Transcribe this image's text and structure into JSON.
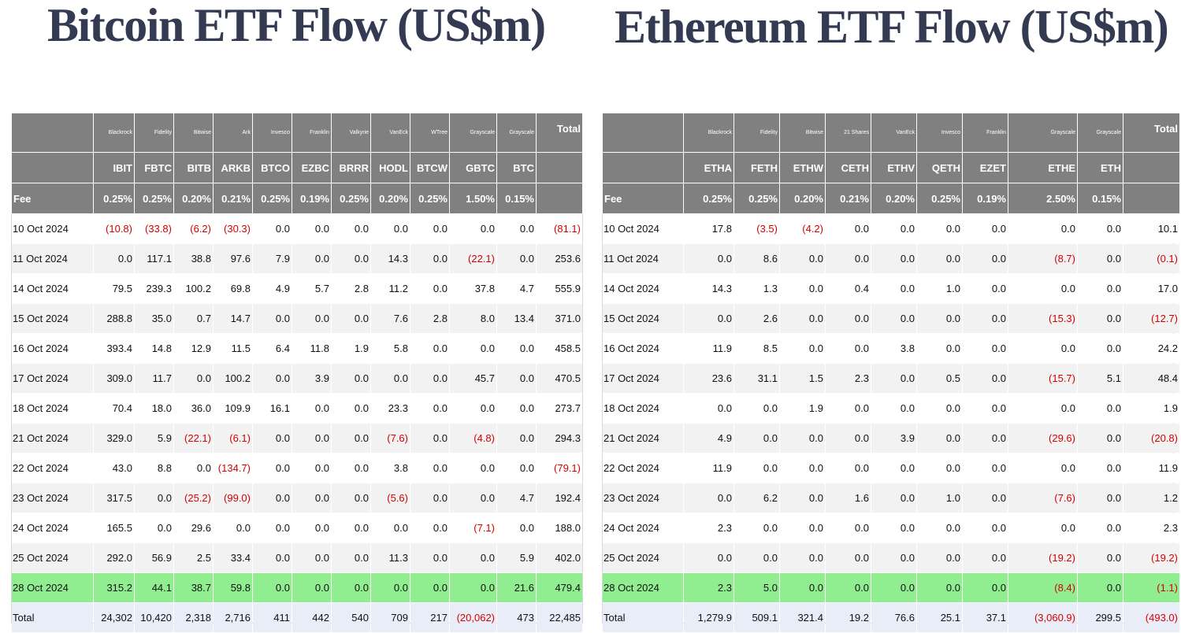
{
  "btc": {
    "title": "Bitcoin ETF Flow (US$m)",
    "issuers": [
      "Blackrock",
      "Fidelity",
      "Bitwise",
      "Ark",
      "Invesco",
      "Franklin",
      "Valkyrie",
      "VanEck",
      "WTree",
      "Grayscale",
      "Grayscale"
    ],
    "total_label": "Total",
    "tickers": [
      "IBIT",
      "FBTC",
      "BITB",
      "ARKB",
      "BTCO",
      "EZBC",
      "BRRR",
      "HODL",
      "BTCW",
      "GBTC",
      "BTC"
    ],
    "fee_label": "Fee",
    "fees": [
      "0.25%",
      "0.25%",
      "0.20%",
      "0.21%",
      "0.25%",
      "0.19%",
      "0.25%",
      "0.20%",
      "0.25%",
      "1.50%",
      "0.15%"
    ],
    "rows": [
      {
        "date": "10 Oct 2024",
        "values": [
          "(10.8)",
          "(33.8)",
          "(6.2)",
          "(30.3)",
          "0.0",
          "0.0",
          "0.0",
          "0.0",
          "0.0",
          "0.0",
          "0.0",
          "(81.1)"
        ]
      },
      {
        "date": "11 Oct 2024",
        "values": [
          "0.0",
          "117.1",
          "38.8",
          "97.6",
          "7.9",
          "0.0",
          "0.0",
          "14.3",
          "0.0",
          "(22.1)",
          "0.0",
          "253.6"
        ]
      },
      {
        "date": "14 Oct 2024",
        "values": [
          "79.5",
          "239.3",
          "100.2",
          "69.8",
          "4.9",
          "5.7",
          "2.8",
          "11.2",
          "0.0",
          "37.8",
          "4.7",
          "555.9"
        ]
      },
      {
        "date": "15 Oct 2024",
        "values": [
          "288.8",
          "35.0",
          "0.7",
          "14.7",
          "0.0",
          "0.0",
          "0.0",
          "7.6",
          "2.8",
          "8.0",
          "13.4",
          "371.0"
        ]
      },
      {
        "date": "16 Oct 2024",
        "values": [
          "393.4",
          "14.8",
          "12.9",
          "11.5",
          "6.4",
          "11.8",
          "1.9",
          "5.8",
          "0.0",
          "0.0",
          "0.0",
          "458.5"
        ]
      },
      {
        "date": "17 Oct 2024",
        "values": [
          "309.0",
          "11.7",
          "0.0",
          "100.2",
          "0.0",
          "3.9",
          "0.0",
          "0.0",
          "0.0",
          "45.7",
          "0.0",
          "470.5"
        ]
      },
      {
        "date": "18 Oct 2024",
        "values": [
          "70.4",
          "18.0",
          "36.0",
          "109.9",
          "16.1",
          "0.0",
          "0.0",
          "23.3",
          "0.0",
          "0.0",
          "0.0",
          "273.7"
        ]
      },
      {
        "date": "21 Oct 2024",
        "values": [
          "329.0",
          "5.9",
          "(22.1)",
          "(6.1)",
          "0.0",
          "0.0",
          "0.0",
          "(7.6)",
          "0.0",
          "(4.8)",
          "0.0",
          "294.3"
        ]
      },
      {
        "date": "22 Oct 2024",
        "values": [
          "43.0",
          "8.8",
          "0.0",
          "(134.7)",
          "0.0",
          "0.0",
          "0.0",
          "3.8",
          "0.0",
          "0.0",
          "0.0",
          "(79.1)"
        ]
      },
      {
        "date": "23 Oct 2024",
        "values": [
          "317.5",
          "0.0",
          "(25.2)",
          "(99.0)",
          "0.0",
          "0.0",
          "0.0",
          "(5.6)",
          "0.0",
          "0.0",
          "4.7",
          "192.4"
        ]
      },
      {
        "date": "24 Oct 2024",
        "values": [
          "165.5",
          "0.0",
          "29.6",
          "0.0",
          "0.0",
          "0.0",
          "0.0",
          "0.0",
          "0.0",
          "(7.1)",
          "0.0",
          "188.0"
        ]
      },
      {
        "date": "25 Oct 2024",
        "values": [
          "292.0",
          "56.9",
          "2.5",
          "33.4",
          "0.0",
          "0.0",
          "0.0",
          "11.3",
          "0.0",
          "0.0",
          "5.9",
          "402.0"
        ]
      },
      {
        "date": "28 Oct 2024",
        "values": [
          "315.2",
          "44.1",
          "38.7",
          "59.8",
          "0.0",
          "0.0",
          "0.0",
          "0.0",
          "0.0",
          "0.0",
          "21.6",
          "479.4"
        ],
        "highlight": true
      },
      {
        "date": "Total",
        "values": [
          "24,302",
          "10,420",
          "2,318",
          "2,716",
          "411",
          "442",
          "540",
          "709",
          "217",
          "(20,062)",
          "473",
          "22,485"
        ],
        "total": true
      }
    ]
  },
  "eth": {
    "title": "Ethereum ETF Flow (US$m)",
    "issuers": [
      "Blackrock",
      "Fidelity",
      "Bitwise",
      "21 Shares",
      "VanEck",
      "Invesco",
      "Franklin",
      "Grayscale",
      "Grayscale"
    ],
    "total_label": "Total",
    "tickers": [
      "ETHA",
      "FETH",
      "ETHW",
      "CETH",
      "ETHV",
      "QETH",
      "EZET",
      "ETHE",
      "ETH"
    ],
    "fee_label": "Fee",
    "fees": [
      "0.25%",
      "0.25%",
      "0.20%",
      "0.21%",
      "0.20%",
      "0.25%",
      "0.19%",
      "2.50%",
      "0.15%"
    ],
    "rows": [
      {
        "date": "10 Oct 2024",
        "values": [
          "17.8",
          "(3.5)",
          "(4.2)",
          "0.0",
          "0.0",
          "0.0",
          "0.0",
          "0.0",
          "0.0",
          "10.1"
        ]
      },
      {
        "date": "11 Oct 2024",
        "values": [
          "0.0",
          "8.6",
          "0.0",
          "0.0",
          "0.0",
          "0.0",
          "0.0",
          "(8.7)",
          "0.0",
          "(0.1)"
        ]
      },
      {
        "date": "14 Oct 2024",
        "values": [
          "14.3",
          "1.3",
          "0.0",
          "0.4",
          "0.0",
          "1.0",
          "0.0",
          "0.0",
          "0.0",
          "17.0"
        ]
      },
      {
        "date": "15 Oct 2024",
        "values": [
          "0.0",
          "2.6",
          "0.0",
          "0.0",
          "0.0",
          "0.0",
          "0.0",
          "(15.3)",
          "0.0",
          "(12.7)"
        ]
      },
      {
        "date": "16 Oct 2024",
        "values": [
          "11.9",
          "8.5",
          "0.0",
          "0.0",
          "3.8",
          "0.0",
          "0.0",
          "0.0",
          "0.0",
          "24.2"
        ]
      },
      {
        "date": "17 Oct 2024",
        "values": [
          "23.6",
          "31.1",
          "1.5",
          "2.3",
          "0.0",
          "0.5",
          "0.0",
          "(15.7)",
          "5.1",
          "48.4"
        ]
      },
      {
        "date": "18 Oct 2024",
        "values": [
          "0.0",
          "0.0",
          "1.9",
          "0.0",
          "0.0",
          "0.0",
          "0.0",
          "0.0",
          "0.0",
          "1.9"
        ]
      },
      {
        "date": "21 Oct 2024",
        "values": [
          "4.9",
          "0.0",
          "0.0",
          "0.0",
          "3.9",
          "0.0",
          "0.0",
          "(29.6)",
          "0.0",
          "(20.8)"
        ]
      },
      {
        "date": "22 Oct 2024",
        "values": [
          "11.9",
          "0.0",
          "0.0",
          "0.0",
          "0.0",
          "0.0",
          "0.0",
          "0.0",
          "0.0",
          "11.9"
        ]
      },
      {
        "date": "23 Oct 2024",
        "values": [
          "0.0",
          "6.2",
          "0.0",
          "1.6",
          "0.0",
          "1.0",
          "0.0",
          "(7.6)",
          "0.0",
          "1.2"
        ]
      },
      {
        "date": "24 Oct 2024",
        "values": [
          "2.3",
          "0.0",
          "0.0",
          "0.0",
          "0.0",
          "0.0",
          "0.0",
          "0.0",
          "0.0",
          "2.3"
        ]
      },
      {
        "date": "25 Oct 2024",
        "values": [
          "0.0",
          "0.0",
          "0.0",
          "0.0",
          "0.0",
          "0.0",
          "0.0",
          "(19.2)",
          "0.0",
          "(19.2)"
        ]
      },
      {
        "date": "28 Oct 2024",
        "values": [
          "2.3",
          "5.0",
          "0.0",
          "0.0",
          "0.0",
          "0.0",
          "0.0",
          "(8.4)",
          "0.0",
          "(1.1)"
        ],
        "highlight": true
      },
      {
        "date": "Total",
        "values": [
          "1,279.9",
          "509.1",
          "321.4",
          "19.2",
          "76.6",
          "25.1",
          "37.1",
          "(3,060.9)",
          "299.5",
          "(493.0)"
        ],
        "total": true
      }
    ]
  },
  "colors": {
    "header_bg": "#808080",
    "highlight_row": "#90ee90",
    "total_row": "#e9edf7",
    "negative": "#d40000",
    "title": "#333a52"
  }
}
